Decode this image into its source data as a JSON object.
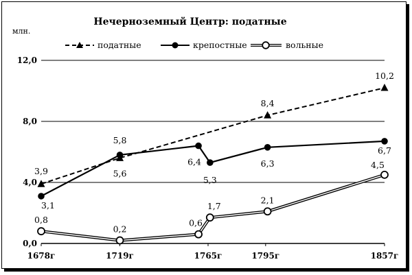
{
  "chart_data": {
    "type": "line",
    "title": "Нечерноземный Центр: податные",
    "ylabel": "млн.",
    "ylim": [
      0,
      12
    ],
    "yticks": [
      0,
      4,
      8,
      12
    ],
    "ytick_labels": [
      "0,0",
      "4,0",
      "8,0",
      "12,0"
    ],
    "xlim": [
      1678,
      1857
    ],
    "x_ticks": [
      {
        "value": 1678,
        "label": "1678г"
      },
      {
        "value": 1719,
        "label": "1719г"
      },
      {
        "value": 1765,
        "label": "1765г"
      },
      {
        "value": 1795,
        "label": "1795г"
      },
      {
        "value": 1857,
        "label": "1857г"
      }
    ],
    "grid": "horizontal",
    "legend_position": "top",
    "series": [
      {
        "name": "податные",
        "style": "dashed-triangle",
        "color": "#000000",
        "points": [
          {
            "x": 1678,
            "y": 3.9,
            "label": "3,9"
          },
          {
            "x": 1719,
            "y": 5.6,
            "label": "5,6"
          },
          {
            "x": 1796,
            "y": 8.4,
            "label": "8,4"
          },
          {
            "x": 1857,
            "y": 10.2,
            "label": "10,2"
          }
        ]
      },
      {
        "name": "крепостные",
        "style": "solid-filled-circle",
        "color": "#000000",
        "points": [
          {
            "x": 1678,
            "y": 3.1,
            "label": "3,1"
          },
          {
            "x": 1719,
            "y": 5.8,
            "label": "5,8"
          },
          {
            "x": 1760,
            "y": 6.4,
            "label": "6,4"
          },
          {
            "x": 1766,
            "y": 5.3,
            "label": "5,3"
          },
          {
            "x": 1796,
            "y": 6.3,
            "label": "6,3"
          },
          {
            "x": 1857,
            "y": 6.7,
            "label": "6,7"
          }
        ]
      },
      {
        "name": "вольные",
        "style": "double-line-open-circle",
        "color": "#000000",
        "points": [
          {
            "x": 1678,
            "y": 0.8,
            "label": "0,8"
          },
          {
            "x": 1719,
            "y": 0.2,
            "label": "0,2"
          },
          {
            "x": 1760,
            "y": 0.6,
            "label": "0,6"
          },
          {
            "x": 1766,
            "y": 1.7,
            "label": "1,7"
          },
          {
            "x": 1796,
            "y": 2.1,
            "label": "2,1"
          },
          {
            "x": 1857,
            "y": 4.5,
            "label": "4,5"
          }
        ]
      }
    ]
  }
}
